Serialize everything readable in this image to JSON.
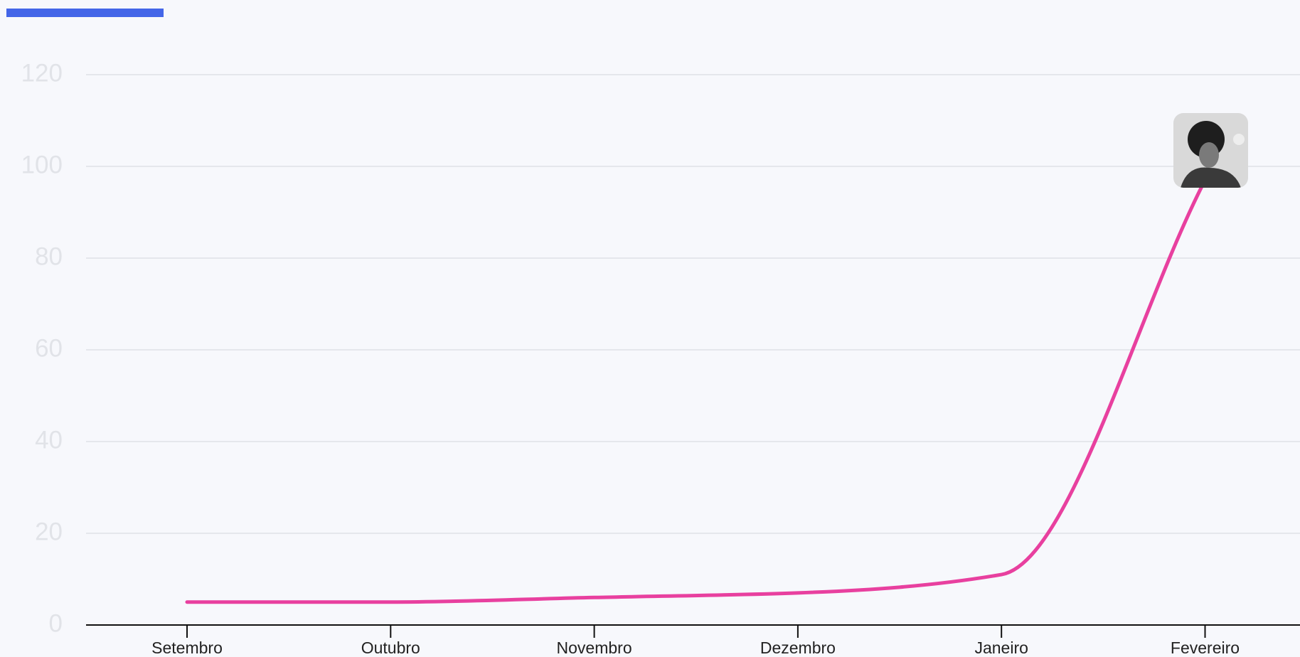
{
  "chart_data": {
    "type": "line",
    "categories": [
      "Setembro",
      "Outubro",
      "Novembro",
      "Dezembro",
      "Janeiro",
      "Fevereiro"
    ],
    "series": [
      {
        "color": "#e8409f",
        "values": [
          5,
          5,
          6,
          7,
          11,
          97
        ]
      }
    ],
    "ylim": [
      0,
      120
    ],
    "yticks": [
      0,
      20,
      40,
      60,
      80,
      100,
      120
    ],
    "grid": true
  }
}
